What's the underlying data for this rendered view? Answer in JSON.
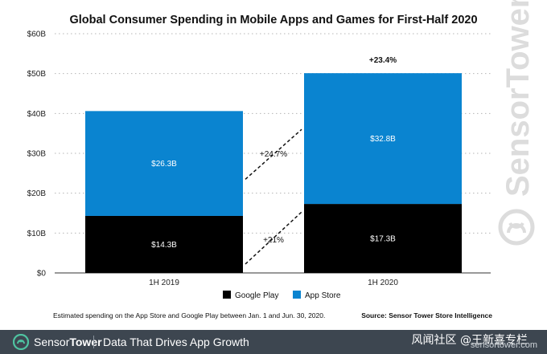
{
  "chart_data": {
    "type": "bar",
    "stacked": true,
    "title": "Global Consumer Spending in Mobile Apps and Games for First-Half 2020",
    "categories": [
      "1H 2019",
      "1H 2020"
    ],
    "series": [
      {
        "name": "Google Play",
        "values": [
          14.3,
          17.3
        ],
        "labels": [
          "$14.3B",
          "$17.3B"
        ],
        "color": "#000000"
      },
      {
        "name": "App Store",
        "values": [
          26.3,
          32.8
        ],
        "labels": [
          "$26.3B",
          "$32.8B"
        ],
        "color": "#0a84d0"
      }
    ],
    "ylim": [
      0,
      60
    ],
    "yticks": [
      0,
      10,
      20,
      30,
      40,
      50,
      60
    ],
    "ytick_labels": [
      "$0",
      "$10B",
      "$20B",
      "$30B",
      "$40B",
      "$50B",
      "$60B"
    ],
    "grid": true,
    "growth_annotations": {
      "app_store": "+24.7%",
      "google_play": "+21%",
      "total": "+23.4%"
    },
    "legend_position": "bottom"
  },
  "note": "Estimated spending on the App Store and Google Play between Jan. 1 and Jun. 30, 2020.",
  "source": "Source: Sensor Tower Store Intelligence",
  "watermark": "SensorTower",
  "footer": {
    "brand_light": "Sensor",
    "brand_bold": "Tower",
    "tagline": "Data That Drives App Growth",
    "url": "sensortower.com",
    "overlay": "风闻社区 @王新喜专栏"
  }
}
